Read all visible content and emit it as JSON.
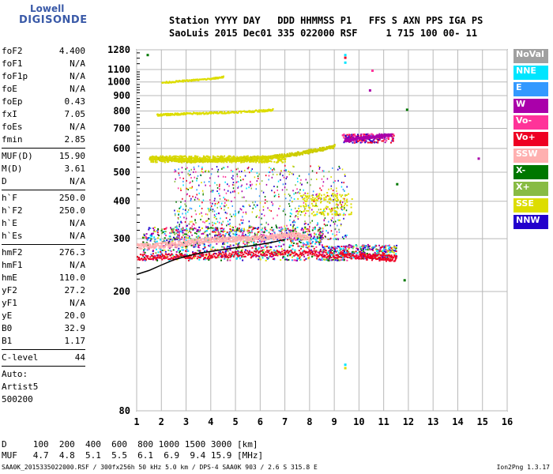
{
  "logo": {
    "line1": "Lowell",
    "line2": "DIGISONDE"
  },
  "header": {
    "line1": "Station YYYY DAY   DDD HHMMSS P1   FFS S AXN PPS IGA PS",
    "line2": "SaoLuis 2015 Dec01 335 022000 RSF     1 715 100 00- 11"
  },
  "params": {
    "group1": [
      {
        "name": "foF2",
        "value": "4.400"
      },
      {
        "name": "foF1",
        "value": "N/A"
      },
      {
        "name": "foF1p",
        "value": "N/A"
      },
      {
        "name": "foE",
        "value": "N/A"
      },
      {
        "name": "foEp",
        "value": "0.43"
      },
      {
        "name": "fxI",
        "value": "7.05"
      },
      {
        "name": "foEs",
        "value": "N/A"
      },
      {
        "name": "fmin",
        "value": "2.85"
      }
    ],
    "group2": [
      {
        "name": "MUF(D)",
        "value": "15.90"
      },
      {
        "name": "M(D)",
        "value": "3.61"
      },
      {
        "name": "D",
        "value": "N/A"
      }
    ],
    "group3": [
      {
        "name": "h`F",
        "value": "250.0"
      },
      {
        "name": "h`F2",
        "value": "250.0"
      },
      {
        "name": "h`E",
        "value": "N/A"
      },
      {
        "name": "h`Es",
        "value": "N/A"
      }
    ],
    "group4": [
      {
        "name": "hmF2",
        "value": "276.3"
      },
      {
        "name": "hmF1",
        "value": "N/A"
      },
      {
        "name": "hmE",
        "value": "110.0"
      },
      {
        "name": "yF2",
        "value": "27.2"
      },
      {
        "name": "yF1",
        "value": "N/A"
      },
      {
        "name": "yE",
        "value": "20.0"
      },
      {
        "name": "B0",
        "value": "32.9"
      },
      {
        "name": "B1",
        "value": "1.17"
      }
    ],
    "group5": [
      {
        "name": "C-level",
        "value": "44"
      }
    ],
    "autoscale": [
      "Auto:",
      "Artist5",
      "500200"
    ]
  },
  "legend": [
    {
      "label": "NoVal",
      "color": "#a0a0a0"
    },
    {
      "label": "NNE",
      "color": "#00e5ff"
    },
    {
      "label": "E",
      "color": "#3399ff"
    },
    {
      "label": "W",
      "color": "#aa00aa"
    },
    {
      "label": "Vo-",
      "color": "#ff3399"
    },
    {
      "label": "Vo+",
      "color": "#ee0022"
    },
    {
      "label": "SSW",
      "color": "#ffb0b0"
    },
    {
      "label": "X-",
      "color": "#007700"
    },
    {
      "label": "X+",
      "color": "#88bb44"
    },
    {
      "label": "SSE",
      "color": "#dddd00"
    },
    {
      "label": "NNW",
      "color": "#2200cc"
    }
  ],
  "footer": {
    "line1": "D     100  200  400  600  800 1000 1500 3000 [km]",
    "line2": "MUF   4.7  4.8  5.1  5.5  6.1  6.9  9.4 15.9 [MHz]",
    "bottom": "SAA0K_2015335022000.RSF / 300fx256h 50 kHz 5.0 km / DPS-4 SAA0K 903 / 2.6 S 315.8 E",
    "version": "Ion2Png 1.3.17"
  },
  "chart_data": {
    "type": "scatter",
    "xlabel": "",
    "ylabel": "",
    "xlim": [
      1,
      16
    ],
    "ylim": [
      80,
      1280
    ],
    "y_scale": "log",
    "x_ticks": [
      1,
      2,
      3,
      4,
      5,
      6,
      7,
      8,
      9,
      10,
      11,
      12,
      13,
      14,
      15,
      16
    ],
    "y_ticks": [
      80,
      200,
      300,
      400,
      500,
      600,
      700,
      800,
      900,
      1000,
      1100,
      1280
    ],
    "grid": true,
    "traces": [
      {
        "name": "F2 o-trace",
        "color": "#dddd00",
        "x": [
          1.5,
          2.0,
          2.5,
          3.0,
          3.5,
          4.0,
          4.5,
          5.0,
          5.5,
          6.0,
          6.5,
          7.0,
          7.5,
          8.0,
          8.5,
          9.0
        ],
        "y": [
          560,
          556,
          552,
          550,
          551,
          552,
          553,
          555,
          557,
          560,
          565,
          572,
          580,
          590,
          600,
          615
        ]
      },
      {
        "name": "F2 x-trace",
        "color": "#aa00aa",
        "x": [
          9.4,
          9.8,
          10.2,
          10.6,
          11.0,
          11.3
        ],
        "y": [
          640,
          650,
          655,
          660,
          665,
          670
        ]
      },
      {
        "name": "multi-hop",
        "color": "#dddd00",
        "x": [
          1.8,
          2.5,
          3.0,
          4.0,
          5.0,
          6.0,
          6.5
        ],
        "y": [
          780,
          785,
          788,
          792,
          798,
          805,
          812
        ]
      },
      {
        "name": "3rd hop",
        "color": "#dddd00",
        "x": [
          2.0,
          3.0,
          4.0,
          4.5
        ],
        "y": [
          1000,
          1015,
          1030,
          1045
        ]
      },
      {
        "name": "h'F low trace",
        "color": "#ffb0b0",
        "x": [
          1.0,
          1.5,
          2.0,
          2.5,
          3.0,
          3.5,
          4.0,
          4.5,
          5.0,
          5.5,
          6.0,
          6.5,
          7.0,
          7.5,
          8.0
        ],
        "y": [
          285,
          285,
          287,
          289,
          292,
          295,
          299,
          300,
          301,
          302,
          303,
          305,
          310,
          310,
          300
        ]
      },
      {
        "name": "h'F dense",
        "color": "#ee0022",
        "x": [
          1.0,
          2.0,
          3.0,
          4.0,
          5.0,
          6.0,
          7.0,
          8.0,
          9.0,
          10.0,
          10.5,
          11.0,
          11.5
        ],
        "y": [
          262,
          262,
          264,
          265,
          268,
          270,
          270,
          270,
          266,
          264,
          262,
          260,
          260
        ]
      }
    ],
    "profile_curve": {
      "x": [
        1.0,
        1.5,
        2.0,
        2.5,
        3.0,
        3.5,
        4.0,
        4.5,
        5.0,
        5.5,
        6.0,
        6.5,
        7.0
      ],
      "y": [
        228,
        235,
        245,
        255,
        262,
        268,
        272,
        276,
        280,
        283,
        287,
        292,
        298
      ]
    }
  }
}
